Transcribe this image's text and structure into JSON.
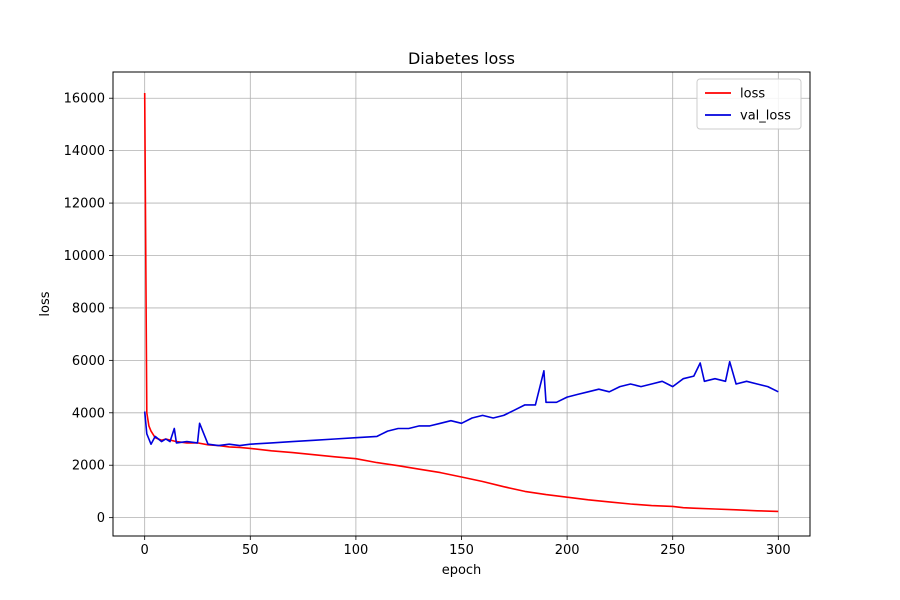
{
  "chart_data": {
    "type": "line",
    "title": "Diabetes loss",
    "xlabel": "epoch",
    "ylabel": "loss",
    "xlim": [
      -15,
      315
    ],
    "ylim": [
      -700,
      17000
    ],
    "xticks": [
      0,
      50,
      100,
      150,
      200,
      250,
      300
    ],
    "yticks": [
      0,
      2000,
      4000,
      6000,
      8000,
      10000,
      12000,
      14000,
      16000
    ],
    "grid": true,
    "legend_position": "top-right",
    "series": [
      {
        "name": "loss",
        "color": "#ff0000",
        "x": [
          0,
          1,
          2,
          3,
          5,
          8,
          10,
          15,
          20,
          25,
          30,
          35,
          40,
          45,
          50,
          60,
          70,
          80,
          90,
          100,
          110,
          120,
          130,
          140,
          150,
          160,
          170,
          180,
          190,
          200,
          210,
          220,
          230,
          240,
          250,
          255,
          260,
          270,
          280,
          290,
          300
        ],
        "y": [
          16200,
          4000,
          3500,
          3300,
          3050,
          2950,
          3000,
          2900,
          2850,
          2850,
          2780,
          2750,
          2700,
          2680,
          2640,
          2550,
          2480,
          2400,
          2320,
          2250,
          2100,
          1980,
          1850,
          1720,
          1550,
          1380,
          1180,
          1000,
          880,
          780,
          680,
          600,
          520,
          460,
          430,
          380,
          360,
          330,
          300,
          260,
          240
        ]
      },
      {
        "name": "val_loss",
        "color": "#0000dd",
        "x": [
          0,
          1,
          2,
          3,
          5,
          8,
          10,
          12,
          14,
          15,
          20,
          25,
          26,
          30,
          35,
          40,
          45,
          50,
          60,
          70,
          80,
          90,
          100,
          110,
          115,
          120,
          125,
          130,
          135,
          140,
          145,
          150,
          155,
          160,
          165,
          170,
          175,
          180,
          185,
          189,
          190,
          195,
          200,
          205,
          210,
          215,
          220,
          225,
          230,
          235,
          240,
          245,
          250,
          255,
          260,
          263,
          265,
          270,
          275,
          277,
          280,
          285,
          290,
          295,
          300
        ],
        "y": [
          4050,
          3200,
          3000,
          2800,
          3100,
          2900,
          3000,
          2900,
          3400,
          2850,
          2900,
          2850,
          3600,
          2800,
          2750,
          2800,
          2750,
          2800,
          2850,
          2900,
          2950,
          3000,
          3050,
          3100,
          3300,
          3400,
          3400,
          3500,
          3500,
          3600,
          3700,
          3600,
          3800,
          3900,
          3800,
          3900,
          4100,
          4300,
          4300,
          5600,
          4400,
          4400,
          4600,
          4700,
          4800,
          4900,
          4800,
          5000,
          5100,
          5000,
          5100,
          5200,
          5000,
          5300,
          5400,
          5900,
          5200,
          5300,
          5200,
          5950,
          5100,
          5200,
          5100,
          5000,
          4800
        ]
      }
    ]
  }
}
